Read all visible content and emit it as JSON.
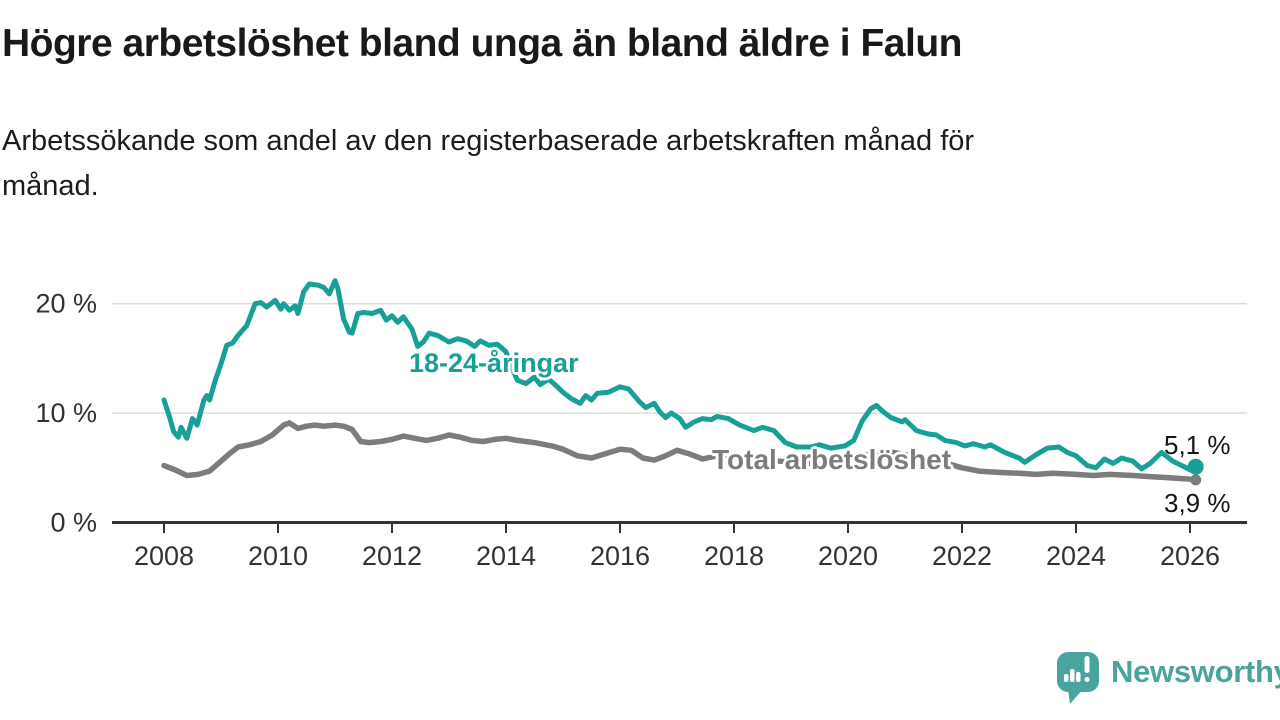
{
  "header": {
    "title": "Högre arbetslöshet bland unga än bland äldre i Falun",
    "subtitle_line1": "Arbetssökande som andel av den registerbaserade arbetskraften månad för",
    "subtitle_line2": "månad."
  },
  "chart_data": {
    "type": "line",
    "unit": "%",
    "grid": "horizontal-only",
    "xlim": [
      2007.1,
      2027.0
    ],
    "ylim": [
      0,
      23
    ],
    "x_ticks": [
      2008,
      2010,
      2012,
      2014,
      2016,
      2018,
      2020,
      2022,
      2024,
      2026
    ],
    "y_ticks": [
      {
        "value": 0,
        "label": "0 %"
      },
      {
        "value": 10,
        "label": "10 %"
      },
      {
        "value": 20,
        "label": "20 %"
      }
    ],
    "axis_color": "#333333",
    "gridline_color": "#dcdcdc",
    "series": [
      {
        "name": "18-24-åringar",
        "color": "#18a096",
        "end_label": "5,1 %",
        "end_value": 5.1,
        "x": [
          2008.0,
          2008.1,
          2008.17,
          2008.25,
          2008.3,
          2008.4,
          2008.5,
          2008.58,
          2008.7,
          2008.75,
          2008.8,
          2008.9,
          2009.0,
          2009.1,
          2009.2,
          2009.3,
          2009.45,
          2009.6,
          2009.7,
          2009.8,
          2009.95,
          2010.05,
          2010.1,
          2010.2,
          2010.3,
          2010.35,
          2010.45,
          2010.55,
          2010.7,
          2010.8,
          2010.9,
          2011.0,
          2011.05,
          2011.15,
          2011.25,
          2011.3,
          2011.4,
          2011.5,
          2011.65,
          2011.8,
          2011.9,
          2012.0,
          2012.1,
          2012.2,
          2012.35,
          2012.45,
          2012.55,
          2012.65,
          2012.8,
          2013.0,
          2013.15,
          2013.3,
          2013.45,
          2013.55,
          2013.7,
          2013.85,
          2014.0,
          2014.1,
          2014.2,
          2014.35,
          2014.5,
          2014.6,
          2014.75,
          2014.9,
          2015.0,
          2015.15,
          2015.3,
          2015.4,
          2015.5,
          2015.6,
          2015.8,
          2016.0,
          2016.15,
          2016.35,
          2016.45,
          2016.6,
          2016.7,
          2016.8,
          2016.9,
          2017.05,
          2017.15,
          2017.3,
          2017.45,
          2017.6,
          2017.7,
          2017.9,
          2018.1,
          2018.35,
          2018.5,
          2018.7,
          2018.9,
          2019.1,
          2019.35,
          2019.5,
          2019.7,
          2019.95,
          2020.1,
          2020.25,
          2020.4,
          2020.5,
          2020.6,
          2020.75,
          2020.95,
          2021.0,
          2021.2,
          2021.4,
          2021.55,
          2021.7,
          2021.9,
          2022.05,
          2022.2,
          2022.4,
          2022.5,
          2022.75,
          2023.0,
          2023.1,
          2023.3,
          2023.5,
          2023.7,
          2023.85,
          2024.0,
          2024.2,
          2024.35,
          2024.5,
          2024.65,
          2024.8,
          2025.0,
          2025.15,
          2025.3,
          2025.5,
          2025.7,
          2025.9,
          2026.0,
          2026.1
        ],
        "values": [
          11.2,
          9.6,
          8.3,
          7.8,
          8.7,
          7.7,
          9.5,
          8.9,
          11.2,
          11.6,
          11.2,
          13.0,
          14.5,
          16.2,
          16.4,
          17.1,
          18.0,
          20.0,
          20.1,
          19.7,
          20.3,
          19.5,
          20.0,
          19.4,
          19.8,
          19.1,
          21.1,
          21.8,
          21.7,
          21.5,
          20.9,
          22.1,
          21.4,
          18.6,
          17.4,
          17.3,
          19.1,
          19.2,
          19.1,
          19.4,
          18.5,
          18.9,
          18.3,
          18.8,
          17.7,
          16.1,
          16.5,
          17.3,
          17.1,
          16.5,
          16.8,
          16.6,
          16.1,
          16.6,
          16.2,
          16.3,
          15.6,
          14.2,
          13.0,
          12.7,
          13.3,
          12.6,
          13.1,
          12.4,
          11.9,
          11.3,
          10.9,
          11.6,
          11.2,
          11.8,
          11.9,
          12.4,
          12.2,
          11.0,
          10.5,
          10.9,
          10.1,
          9.6,
          10.0,
          9.5,
          8.7,
          9.2,
          9.5,
          9.4,
          9.7,
          9.5,
          8.9,
          8.4,
          8.7,
          8.4,
          7.3,
          6.9,
          6.9,
          7.1,
          6.8,
          7.0,
          7.5,
          9.3,
          10.4,
          10.7,
          10.2,
          9.6,
          9.2,
          9.4,
          8.4,
          8.1,
          8.0,
          7.5,
          7.3,
          7.0,
          7.2,
          6.9,
          7.1,
          6.4,
          5.9,
          5.5,
          6.2,
          6.8,
          6.9,
          6.4,
          6.1,
          5.2,
          5.0,
          5.8,
          5.4,
          5.9,
          5.6,
          4.9,
          5.4,
          6.4,
          5.6,
          5.1,
          4.8,
          5.1
        ]
      },
      {
        "name": "Total arbetslöshet",
        "color": "#7c7c7c",
        "end_label": "3,9 %",
        "end_value": 3.9,
        "x": [
          2008.0,
          2008.2,
          2008.4,
          2008.6,
          2008.8,
          2009.0,
          2009.15,
          2009.3,
          2009.5,
          2009.7,
          2009.9,
          2010.1,
          2010.2,
          2010.35,
          2010.5,
          2010.65,
          2010.8,
          2011.0,
          2011.15,
          2011.3,
          2011.45,
          2011.6,
          2011.8,
          2012.0,
          2012.2,
          2012.4,
          2012.6,
          2012.8,
          2013.0,
          2013.2,
          2013.4,
          2013.6,
          2013.8,
          2014.0,
          2014.2,
          2014.5,
          2014.8,
          2015.0,
          2015.25,
          2015.5,
          2015.75,
          2016.0,
          2016.2,
          2016.4,
          2016.6,
          2016.8,
          2017.0,
          2017.2,
          2017.45,
          2017.7,
          2018.0,
          2018.4,
          2018.8,
          2019.2,
          2019.6,
          2020.0,
          2020.4,
          2020.8,
          2021.2,
          2021.6,
          2022.0,
          2022.3,
          2022.6,
          2023.0,
          2023.3,
          2023.6,
          2024.0,
          2024.3,
          2024.6,
          2025.0,
          2025.3,
          2025.6,
          2025.9,
          2026.1
        ],
        "values": [
          5.2,
          4.8,
          4.3,
          4.4,
          4.7,
          5.6,
          6.3,
          6.9,
          7.1,
          7.4,
          8.0,
          8.9,
          9.1,
          8.6,
          8.8,
          8.9,
          8.8,
          8.9,
          8.8,
          8.5,
          7.4,
          7.3,
          7.4,
          7.6,
          7.9,
          7.7,
          7.5,
          7.7,
          8.0,
          7.8,
          7.5,
          7.4,
          7.6,
          7.7,
          7.5,
          7.3,
          7.0,
          6.7,
          6.1,
          5.9,
          6.3,
          6.7,
          6.6,
          5.9,
          5.7,
          6.1,
          6.6,
          6.3,
          5.8,
          6.1,
          6.0,
          5.8,
          5.6,
          5.4,
          5.3,
          5.6,
          6.3,
          6.4,
          6.0,
          5.6,
          5.0,
          4.7,
          4.6,
          4.5,
          4.4,
          4.5,
          4.4,
          4.3,
          4.4,
          4.3,
          4.2,
          4.1,
          4.0,
          3.9
        ]
      }
    ]
  },
  "branding": {
    "logo_text": "Newsworthy",
    "logo_color": "#4aa49e",
    "logo_icon": "speech-bubble-bar-chart-exclamation"
  }
}
